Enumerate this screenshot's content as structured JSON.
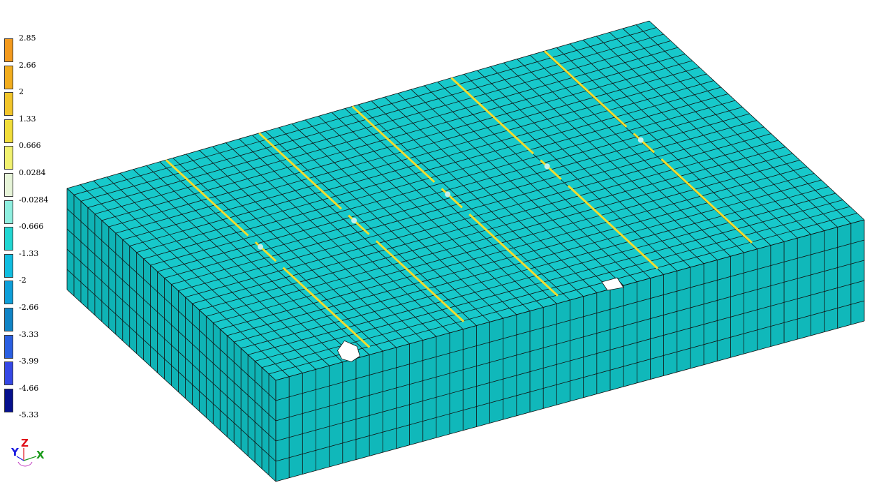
{
  "legend": {
    "labels": [
      "2.85",
      "2.66",
      "2",
      "1.33",
      "0.666",
      "0.0284",
      "-0.0284",
      "-0.666",
      "-1.33",
      "-2",
      "-2.66",
      "-3.33",
      "-3.99",
      "-4.66",
      "-5.33"
    ],
    "colors": [
      "#f39a1e",
      "#f2ad1e",
      "#f2c52a",
      "#f1dd3a",
      "#f1f170",
      "#e6f4d8",
      "#8fefe0",
      "#22d6d2",
      "#11bde0",
      "#0e9fd9",
      "#1184c6",
      "#2a5fe2",
      "#3548e6",
      "#06118e"
    ]
  },
  "axes": {
    "z": "Z",
    "y": "Y",
    "x": "X",
    "z_color": "#e0101a",
    "y_color": "#1a1ae0",
    "x_color": "#1a9a1a"
  },
  "model": {
    "top_color": "#17c9cb",
    "side_color": "#0fb3b5",
    "front_color": "#10b8ba",
    "mesh_color": "#111111",
    "hole_color": "#ffffff",
    "grid_u": 44,
    "grid_v": 30,
    "grid_h": 5,
    "stripe_colors": [
      "#f1f170",
      "#f2dc2e",
      "#e8c23a",
      "#c8f0e8",
      "#4fa6ff"
    ]
  }
}
